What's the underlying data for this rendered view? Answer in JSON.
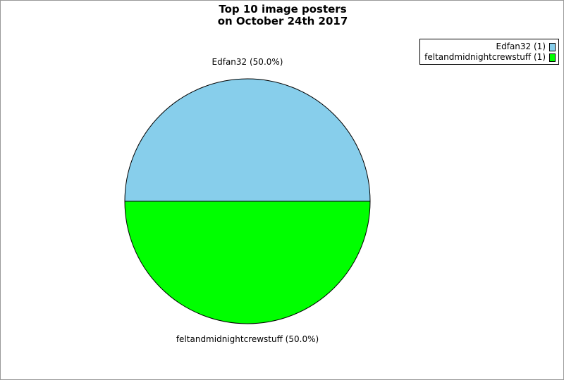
{
  "chart_data": {
    "type": "pie",
    "title": [
      "Top 10 image posters",
      "on October 24th 2017"
    ],
    "slices": [
      {
        "label": "Edfan32",
        "value": 1,
        "percent": "50.0%",
        "color": "#87ceeb",
        "legend": "Edfan32 (1)",
        "slice_label": "Edfan32 (50.0%)"
      },
      {
        "label": "feltandmidnightcrewstuff",
        "value": 1,
        "percent": "50.0%",
        "color": "#00ff00",
        "legend": "feltandmidnightcrewstuff (1)",
        "slice_label": "feltandmidnightcrewstuff (50.0%)"
      }
    ],
    "legend_position": "top-right"
  }
}
